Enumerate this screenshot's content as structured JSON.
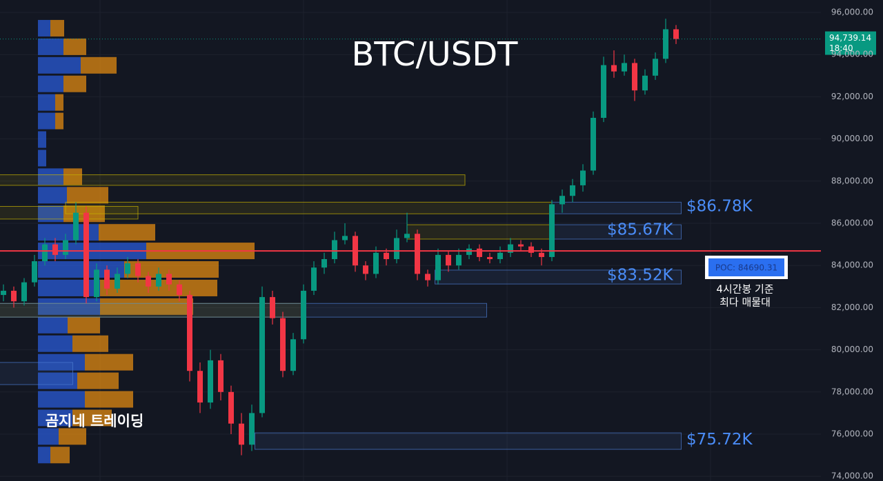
{
  "chart_data": {
    "type": "candlestick",
    "title": "BTC/USDT",
    "watermark": "곰지네 트레이딩",
    "ylim": [
      73778,
      96588
    ],
    "yticks": [
      {
        "value": 74000,
        "label": "74,000.00"
      },
      {
        "value": 76000,
        "label": "76,000.00"
      },
      {
        "value": 78000,
        "label": "78,000.00"
      },
      {
        "value": 80000,
        "label": "80,000.00"
      },
      {
        "value": 82000,
        "label": "82,000.00"
      },
      {
        "value": 84000,
        "label": "84,000.00"
      },
      {
        "value": 86000,
        "label": "86,000.00"
      },
      {
        "value": 88000,
        "label": "88,000.00"
      },
      {
        "value": 90000,
        "label": "90,000.00"
      },
      {
        "value": 92000,
        "label": "92,000.00"
      },
      {
        "value": 94000,
        "label": "94,000.00"
      },
      {
        "value": 96000,
        "label": "96,000.00"
      }
    ],
    "up_color": "#089981",
    "down_color": "#f23645",
    "candles": [
      [
        82600,
        83100,
        82300,
        82800
      ],
      [
        82800,
        83000,
        82000,
        82300
      ],
      [
        82300,
        83400,
        82100,
        83200
      ],
      [
        83200,
        84500,
        83000,
        84200
      ],
      [
        84200,
        85300,
        84000,
        85000
      ],
      [
        85000,
        85300,
        84200,
        84500
      ],
      [
        84500,
        85500,
        84300,
        85200
      ],
      [
        85200,
        87000,
        85000,
        86500
      ],
      [
        86500,
        86800,
        82200,
        82500
      ],
      [
        82500,
        84100,
        82300,
        83800
      ],
      [
        83800,
        84000,
        82600,
        82900
      ],
      [
        82900,
        83900,
        82700,
        83600
      ],
      [
        83600,
        84400,
        83400,
        84100
      ],
      [
        84100,
        84300,
        83200,
        83500
      ],
      [
        83500,
        83700,
        82700,
        83000
      ],
      [
        83000,
        83900,
        82800,
        83600
      ],
      [
        83600,
        83800,
        82800,
        83100
      ],
      [
        83100,
        83300,
        82300,
        82600
      ],
      [
        82600,
        82800,
        78500,
        79000
      ],
      [
        79000,
        79400,
        77000,
        77500
      ],
      [
        77500,
        80000,
        77200,
        79500
      ],
      [
        79500,
        79800,
        77600,
        78000
      ],
      [
        78000,
        78300,
        76000,
        76500
      ],
      [
        76500,
        77000,
        75000,
        75500
      ],
      [
        75500,
        77400,
        75200,
        77000
      ],
      [
        77000,
        83000,
        76800,
        82500
      ],
      [
        82500,
        82800,
        81200,
        81500
      ],
      [
        81500,
        81800,
        78700,
        79000
      ],
      [
        79000,
        80800,
        78800,
        80500
      ],
      [
        80500,
        83100,
        80300,
        82800
      ],
      [
        82800,
        84200,
        82600,
        83900
      ],
      [
        83900,
        84600,
        83600,
        84300
      ],
      [
        84300,
        85600,
        84100,
        85200
      ],
      [
        85200,
        86000,
        85000,
        85400
      ],
      [
        85400,
        85600,
        83700,
        84000
      ],
      [
        84000,
        84200,
        83300,
        83600
      ],
      [
        83600,
        84900,
        83400,
        84600
      ],
      [
        84600,
        84800,
        84000,
        84300
      ],
      [
        84300,
        85700,
        84100,
        85300
      ],
      [
        85300,
        86500,
        85100,
        85500
      ],
      [
        85500,
        85700,
        83300,
        83600
      ],
      [
        83600,
        83800,
        83000,
        83300
      ],
      [
        83300,
        84800,
        83100,
        84500
      ],
      [
        84500,
        84700,
        83700,
        84000
      ],
      [
        84000,
        84800,
        83800,
        84500
      ],
      [
        84500,
        85000,
        84300,
        84800
      ],
      [
        84800,
        85000,
        84200,
        84400
      ],
      [
        84400,
        84600,
        84100,
        84300
      ],
      [
        84300,
        84900,
        84100,
        84600
      ],
      [
        84600,
        85300,
        84400,
        85000
      ],
      [
        85000,
        85200,
        84700,
        84900
      ],
      [
        84900,
        85100,
        84400,
        84600
      ],
      [
        84600,
        84800,
        84000,
        84400
      ],
      [
        84400,
        87100,
        84200,
        86900
      ],
      [
        86900,
        87600,
        86500,
        87300
      ],
      [
        87300,
        88100,
        87000,
        87800
      ],
      [
        87800,
        88800,
        87500,
        88500
      ],
      [
        88500,
        91300,
        88300,
        91000
      ],
      [
        91000,
        93900,
        90800,
        93500
      ],
      [
        93500,
        94200,
        92900,
        93200
      ],
      [
        93200,
        94000,
        93000,
        93600
      ],
      [
        93600,
        93800,
        91800,
        92300
      ],
      [
        92300,
        93300,
        92100,
        93000
      ],
      [
        93000,
        94100,
        92800,
        93800
      ],
      [
        93800,
        95700,
        93600,
        95200
      ],
      [
        95200,
        95400,
        94500,
        94739.14
      ]
    ],
    "volume_profile": {
      "buy_color": "#2a5bd7",
      "sell_color": "#e08a12",
      "price": [
        95250,
        94370,
        93490,
        92610,
        91730,
        90850,
        89970,
        89090,
        88210,
        87330,
        86450,
        85570,
        84690,
        83810,
        82930,
        82050,
        81170,
        80290,
        79410,
        78530,
        77650,
        76770,
        75890,
        75010
      ],
      "buy": [
        18,
        37,
        62,
        37,
        25,
        25,
        12,
        12,
        37,
        42,
        37,
        88,
        157,
        125,
        90,
        90,
        43,
        50,
        68,
        57,
        68,
        50,
        30,
        18
      ],
      "sell": [
        20,
        33,
        52,
        33,
        12,
        12,
        0,
        0,
        27,
        60,
        60,
        82,
        157,
        137,
        170,
        135,
        47,
        52,
        70,
        60,
        70,
        57,
        40,
        28
      ]
    },
    "zones": [
      {
        "color": "#c8b400",
        "top": 88300,
        "bottom": 87800,
        "start": -0.4,
        "end": 44.6
      },
      {
        "color": "#c8b400",
        "top": 86800,
        "bottom": 86200,
        "start": -0.4,
        "end": 13
      },
      {
        "color": "#c8b400",
        "top": 87000,
        "bottom": 86450,
        "start": 6,
        "end": 53
      },
      {
        "color": "#c8b400",
        "top": 85930,
        "bottom": 85250,
        "start": 39,
        "end": 53
      },
      {
        "color": "#c8b400",
        "top": 82200,
        "bottom": 81550,
        "start": -0.4,
        "end": 29
      },
      {
        "color": "#4a7bd0",
        "top": 82200,
        "bottom": 81550,
        "start": -0.4,
        "end": 46.7
      },
      {
        "color": "#4a7bd0",
        "top": 87000,
        "bottom": 86450,
        "start": 53,
        "end": 65.5
      },
      {
        "color": "#4a7bd0",
        "top": 85930,
        "bottom": 85250,
        "start": 53,
        "end": 65.5
      },
      {
        "color": "#4a7bd0",
        "top": 83780,
        "bottom": 83120,
        "start": 41.7,
        "end": 65.5
      },
      {
        "color": "#4a7bd0",
        "top": 76060,
        "bottom": 75280,
        "start": 24.3,
        "end": 65.5
      },
      {
        "color": "#4a7bd0",
        "top": 79400,
        "bottom": 78350,
        "start": -0.4,
        "end": 6.7
      }
    ],
    "level_labels": [
      {
        "value": 86780,
        "label": "$86.78K"
      },
      {
        "value": 85670,
        "label": "$85.67K"
      },
      {
        "value": 83520,
        "label": "$83.52K"
      },
      {
        "value": 75720,
        "label": "$75.72K"
      }
    ],
    "poc": {
      "value": 84690.31,
      "label": "POC: 84690.31",
      "color": "#f23645"
    },
    "poc_note": [
      "4시간봉 기준",
      "최다 매물대"
    ],
    "last_price": {
      "value": 94739.14,
      "label": "94,739.14",
      "time": "18:40",
      "color": "#089981"
    }
  }
}
